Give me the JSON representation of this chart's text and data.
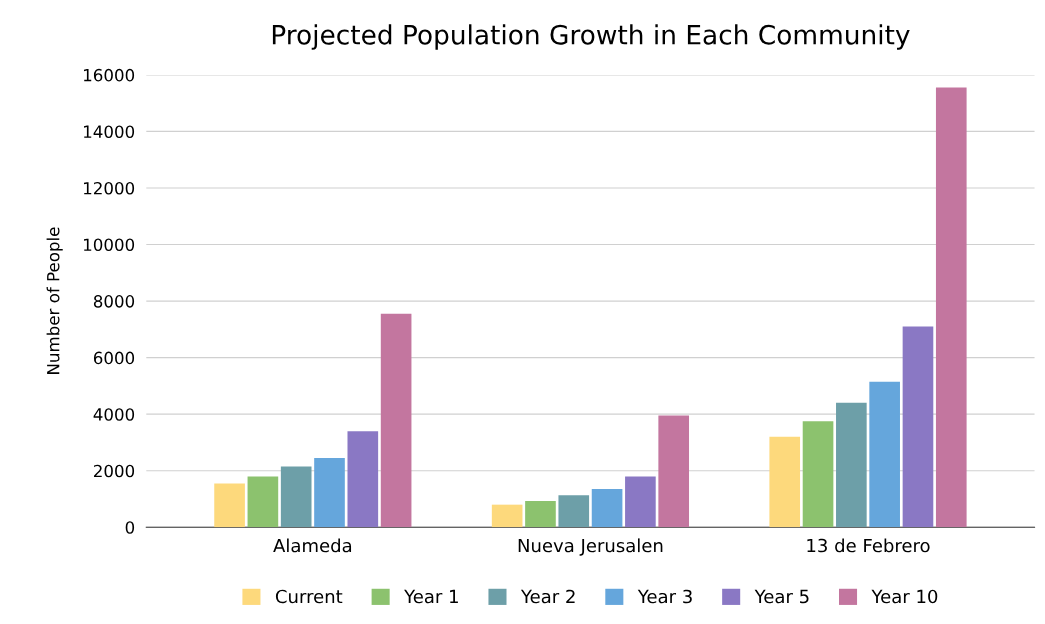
{
  "chart_data": {
    "type": "bar",
    "title": "Projected Population Growth in Each Community",
    "ylabel": "Number of People",
    "categories": [
      "Alameda",
      "Nueva Jerusalen",
      "13 de Febrero"
    ],
    "series": [
      {
        "name": "Current",
        "color": "#fdd97c",
        "values": [
          1550,
          800,
          3200
        ]
      },
      {
        "name": "Year 1",
        "color": "#8cc26e",
        "values": [
          1800,
          930,
          3750
        ]
      },
      {
        "name": "Year 2",
        "color": "#6d9fa8",
        "values": [
          2150,
          1130,
          4400
        ]
      },
      {
        "name": "Year 3",
        "color": "#65a6dc",
        "values": [
          2450,
          1350,
          5150
        ]
      },
      {
        "name": "Year 5",
        "color": "#8a78c4",
        "values": [
          3400,
          1800,
          7100
        ]
      },
      {
        "name": "Year 10",
        "color": "#c3769f",
        "values": [
          7550,
          3950,
          15550
        ]
      }
    ],
    "ylim": [
      0,
      16000
    ],
    "yticks": [
      0,
      2000,
      4000,
      6000,
      8000,
      10000,
      12000,
      14000,
      16000
    ],
    "grid": "y",
    "legend": "bottom"
  }
}
